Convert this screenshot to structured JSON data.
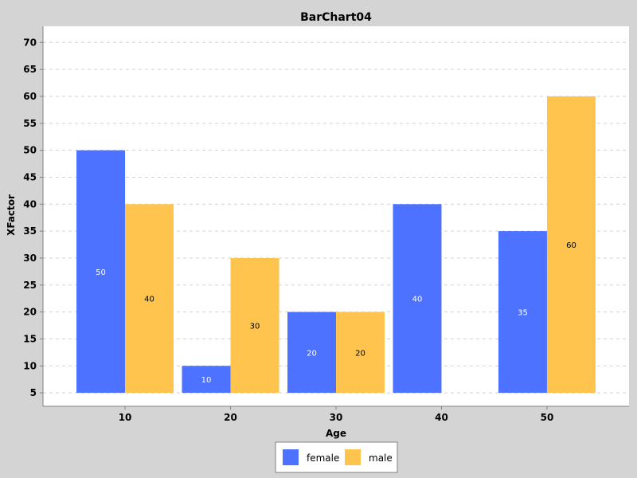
{
  "chart_data": {
    "type": "bar",
    "title": "BarChart04",
    "xlabel": "Age",
    "ylabel": "XFactor",
    "categories": [
      "10",
      "20",
      "30",
      "40",
      "50"
    ],
    "series": [
      {
        "name": "female",
        "color": "#4d72ff",
        "label_color": "#ffffff",
        "values": [
          50,
          10,
          20,
          40,
          35
        ]
      },
      {
        "name": "male",
        "color": "#ffc44d",
        "label_color": "#000000",
        "values": [
          40,
          30,
          20,
          null,
          60
        ]
      }
    ],
    "bar_base": 5,
    "ylim": [
      2.5,
      73
    ],
    "yticks": [
      5,
      10,
      15,
      20,
      25,
      30,
      35,
      40,
      45,
      50,
      55,
      60,
      65,
      70
    ],
    "grid": true,
    "legend_position": "bottom",
    "background_color": "#d4d4d4",
    "plot_background_color": "#ffffff"
  }
}
